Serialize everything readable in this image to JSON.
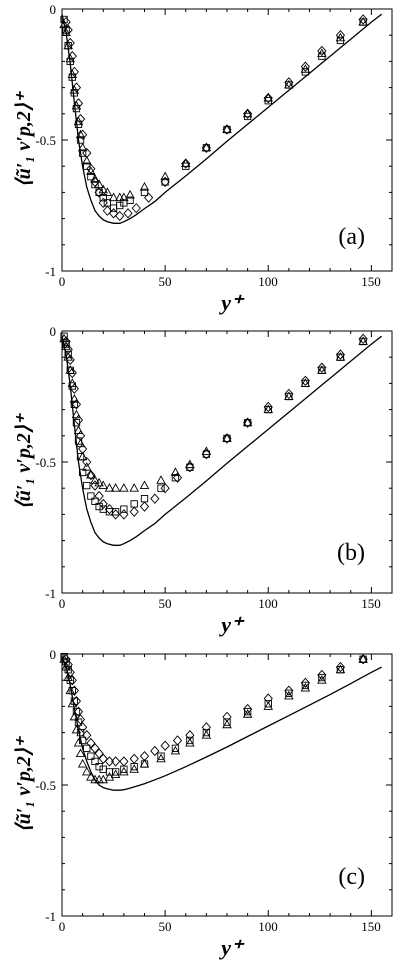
{
  "chart_data": [
    {
      "type": "line",
      "panel_label": "(a)",
      "xlabel": "y⁺",
      "ylabel": "⟨ũ′₁ v′p,2⟩⁺",
      "xlim": [
        0,
        160
      ],
      "ylim": [
        -1,
        0
      ],
      "xticks": [
        "0",
        "50",
        "100",
        "150"
      ],
      "yticks": [
        "0",
        "-0.5",
        "-1"
      ],
      "grid": false,
      "series": [
        {
          "marker": "line",
          "x": [
            0,
            2,
            4,
            6,
            8,
            10,
            12,
            14,
            16,
            18,
            20,
            22,
            25,
            28,
            30,
            33,
            36,
            40,
            45,
            50,
            60,
            70,
            80,
            90,
            100,
            110,
            120,
            130,
            140,
            150,
            155
          ],
          "y": [
            -0.02,
            -0.09,
            -0.21,
            -0.36,
            -0.5,
            -0.6,
            -0.68,
            -0.73,
            -0.77,
            -0.79,
            -0.805,
            -0.812,
            -0.818,
            -0.818,
            -0.812,
            -0.8,
            -0.785,
            -0.762,
            -0.735,
            -0.7,
            -0.637,
            -0.572,
            -0.505,
            -0.44,
            -0.375,
            -0.31,
            -0.245,
            -0.18,
            -0.115,
            -0.05,
            -0.02
          ]
        },
        {
          "marker": "square",
          "x": [
            1,
            2,
            3,
            4,
            5,
            6,
            7,
            8,
            9,
            10,
            12,
            14,
            16,
            18,
            20,
            22,
            25,
            28,
            30,
            33,
            40,
            50,
            60,
            70,
            80,
            90,
            100,
            110,
            118,
            126,
            135,
            146
          ],
          "y": [
            -0.04,
            -0.08,
            -0.14,
            -0.2,
            -0.26,
            -0.32,
            -0.38,
            -0.44,
            -0.5,
            -0.55,
            -0.6,
            -0.64,
            -0.67,
            -0.7,
            -0.72,
            -0.74,
            -0.76,
            -0.75,
            -0.74,
            -0.73,
            -0.7,
            -0.66,
            -0.6,
            -0.53,
            -0.46,
            -0.41,
            -0.35,
            -0.29,
            -0.24,
            -0.18,
            -0.12,
            -0.05
          ]
        },
        {
          "marker": "triangle",
          "x": [
            1,
            2,
            3,
            4,
            5,
            6,
            7,
            8,
            9,
            10,
            12,
            14,
            16,
            18,
            20,
            22,
            25,
            28,
            30,
            33,
            40,
            50,
            60,
            70,
            80,
            90,
            100,
            110,
            118,
            126,
            135,
            146
          ],
          "y": [
            -0.06,
            -0.09,
            -0.14,
            -0.19,
            -0.25,
            -0.31,
            -0.37,
            -0.43,
            -0.48,
            -0.53,
            -0.58,
            -0.62,
            -0.65,
            -0.67,
            -0.69,
            -0.7,
            -0.72,
            -0.72,
            -0.72,
            -0.71,
            -0.68,
            -0.64,
            -0.59,
            -0.53,
            -0.46,
            -0.4,
            -0.34,
            -0.29,
            -0.23,
            -0.17,
            -0.11,
            -0.05
          ]
        },
        {
          "marker": "diamond",
          "x": [
            2,
            3,
            4,
            5,
            6,
            7,
            8,
            9,
            10,
            12,
            14,
            16,
            18,
            20,
            22,
            25,
            28,
            32,
            36,
            42,
            50,
            60,
            70,
            80,
            90,
            100,
            110,
            118,
            126,
            135,
            146
          ],
          "y": [
            -0.05,
            -0.08,
            -0.13,
            -0.18,
            -0.24,
            -0.3,
            -0.36,
            -0.42,
            -0.48,
            -0.55,
            -0.61,
            -0.66,
            -0.7,
            -0.74,
            -0.77,
            -0.78,
            -0.79,
            -0.78,
            -0.76,
            -0.72,
            -0.66,
            -0.59,
            -0.53,
            -0.46,
            -0.4,
            -0.34,
            -0.28,
            -0.22,
            -0.16,
            -0.1,
            -0.04
          ]
        }
      ]
    },
    {
      "type": "line",
      "panel_label": "(b)",
      "xlabel": "y⁺",
      "ylabel": "⟨ũ′₁ v′p,2⟩⁺",
      "xlim": [
        0,
        160
      ],
      "ylim": [
        -1,
        0
      ],
      "xticks": [
        "0",
        "50",
        "100",
        "150"
      ],
      "yticks": [
        "0",
        "-0.5",
        "-1"
      ],
      "grid": false,
      "series": [
        {
          "marker": "line",
          "x": [
            0,
            2,
            4,
            6,
            8,
            10,
            12,
            14,
            16,
            18,
            20,
            22,
            25,
            28,
            30,
            33,
            36,
            40,
            45,
            50,
            60,
            70,
            80,
            90,
            100,
            110,
            120,
            130,
            140,
            150,
            155
          ],
          "y": [
            -0.02,
            -0.09,
            -0.21,
            -0.36,
            -0.5,
            -0.6,
            -0.68,
            -0.73,
            -0.77,
            -0.79,
            -0.805,
            -0.812,
            -0.818,
            -0.818,
            -0.812,
            -0.8,
            -0.785,
            -0.762,
            -0.735,
            -0.7,
            -0.637,
            -0.572,
            -0.505,
            -0.44,
            -0.375,
            -0.31,
            -0.245,
            -0.18,
            -0.115,
            -0.05,
            -0.02
          ]
        },
        {
          "marker": "square",
          "x": [
            1,
            2,
            3,
            4,
            5,
            6,
            7,
            8,
            9,
            10,
            12,
            14,
            16,
            18,
            20,
            23,
            26,
            30,
            35,
            40,
            48,
            55,
            62,
            70,
            80,
            90,
            100,
            110,
            118,
            126,
            135,
            146
          ],
          "y": [
            -0.02,
            -0.05,
            -0.09,
            -0.15,
            -0.21,
            -0.28,
            -0.35,
            -0.42,
            -0.48,
            -0.54,
            -0.59,
            -0.63,
            -0.65,
            -0.67,
            -0.68,
            -0.69,
            -0.69,
            -0.68,
            -0.66,
            -0.64,
            -0.6,
            -0.56,
            -0.52,
            -0.47,
            -0.41,
            -0.35,
            -0.3,
            -0.25,
            -0.2,
            -0.15,
            -0.1,
            -0.04
          ]
        },
        {
          "marker": "triangle",
          "x": [
            1,
            2,
            3,
            4,
            5,
            6,
            7,
            8,
            9,
            10,
            12,
            14,
            16,
            18,
            20,
            23,
            26,
            30,
            35,
            40,
            48,
            55,
            62,
            70,
            80,
            90,
            100,
            110,
            118,
            126,
            135,
            146
          ],
          "y": [
            -0.03,
            -0.06,
            -0.1,
            -0.15,
            -0.2,
            -0.26,
            -0.32,
            -0.38,
            -0.43,
            -0.48,
            -0.52,
            -0.55,
            -0.57,
            -0.58,
            -0.59,
            -0.6,
            -0.6,
            -0.6,
            -0.6,
            -0.59,
            -0.57,
            -0.54,
            -0.51,
            -0.46,
            -0.41,
            -0.35,
            -0.3,
            -0.25,
            -0.2,
            -0.15,
            -0.1,
            -0.04
          ]
        },
        {
          "marker": "diamond",
          "x": [
            2,
            3,
            4,
            5,
            6,
            7,
            8,
            9,
            10,
            12,
            14,
            16,
            18,
            20,
            23,
            26,
            30,
            35,
            40,
            45,
            50,
            56,
            62,
            70,
            80,
            90,
            100,
            110,
            118,
            126,
            135,
            146
          ],
          "y": [
            -0.04,
            -0.07,
            -0.11,
            -0.16,
            -0.22,
            -0.28,
            -0.34,
            -0.4,
            -0.45,
            -0.5,
            -0.55,
            -0.59,
            -0.63,
            -0.66,
            -0.68,
            -0.7,
            -0.7,
            -0.69,
            -0.67,
            -0.64,
            -0.6,
            -0.56,
            -0.52,
            -0.47,
            -0.41,
            -0.35,
            -0.29,
            -0.24,
            -0.19,
            -0.14,
            -0.09,
            -0.03
          ]
        }
      ]
    },
    {
      "type": "line",
      "panel_label": "(c)",
      "xlabel": "y⁺",
      "ylabel": "⟨ũ′₁ v′p,2⟩⁺",
      "xlim": [
        0,
        160
      ],
      "ylim": [
        -1,
        0
      ],
      "xticks": [
        "0",
        "50",
        "100",
        "150"
      ],
      "yticks": [
        "0",
        "-0.5",
        "-1"
      ],
      "grid": false,
      "series": [
        {
          "marker": "line",
          "x": [
            0,
            2,
            4,
            6,
            8,
            10,
            12,
            14,
            16,
            18,
            20,
            22,
            25,
            28,
            30,
            33,
            36,
            40,
            45,
            50,
            60,
            70,
            80,
            90,
            100,
            110,
            120,
            130,
            140,
            150,
            155
          ],
          "y": [
            -0.01,
            -0.05,
            -0.12,
            -0.21,
            -0.29,
            -0.36,
            -0.41,
            -0.45,
            -0.48,
            -0.5,
            -0.51,
            -0.515,
            -0.52,
            -0.52,
            -0.518,
            -0.512,
            -0.505,
            -0.495,
            -0.48,
            -0.465,
            -0.43,
            -0.393,
            -0.355,
            -0.315,
            -0.275,
            -0.235,
            -0.195,
            -0.155,
            -0.113,
            -0.07,
            -0.05
          ]
        },
        {
          "marker": "square",
          "x": [
            1,
            2,
            3,
            4,
            5,
            6,
            7,
            8,
            9,
            10,
            12,
            14,
            16,
            18,
            20,
            23,
            26,
            30,
            35,
            40,
            48,
            55,
            62,
            70,
            80,
            90,
            100,
            110,
            118,
            126,
            135,
            146
          ],
          "y": [
            -0.01,
            -0.03,
            -0.06,
            -0.1,
            -0.14,
            -0.18,
            -0.22,
            -0.26,
            -0.3,
            -0.33,
            -0.36,
            -0.39,
            -0.41,
            -0.43,
            -0.44,
            -0.45,
            -0.45,
            -0.44,
            -0.43,
            -0.42,
            -0.39,
            -0.36,
            -0.33,
            -0.3,
            -0.26,
            -0.22,
            -0.19,
            -0.15,
            -0.12,
            -0.09,
            -0.06,
            -0.02
          ]
        },
        {
          "marker": "triangle",
          "x": [
            1,
            2,
            3,
            4,
            5,
            6,
            7,
            8,
            9,
            10,
            12,
            14,
            16,
            18,
            20,
            23,
            26,
            30,
            35,
            40,
            48,
            55,
            62,
            70,
            80,
            90,
            100,
            110,
            118,
            126,
            135,
            146
          ],
          "y": [
            -0.02,
            -0.05,
            -0.09,
            -0.14,
            -0.19,
            -0.24,
            -0.29,
            -0.34,
            -0.38,
            -0.42,
            -0.45,
            -0.47,
            -0.48,
            -0.48,
            -0.48,
            -0.47,
            -0.46,
            -0.45,
            -0.44,
            -0.42,
            -0.4,
            -0.37,
            -0.34,
            -0.31,
            -0.27,
            -0.23,
            -0.2,
            -0.16,
            -0.13,
            -0.1,
            -0.06,
            -0.02
          ]
        },
        {
          "marker": "diamond",
          "x": [
            2,
            3,
            4,
            5,
            6,
            7,
            8,
            9,
            10,
            12,
            14,
            16,
            18,
            20,
            23,
            26,
            30,
            35,
            40,
            45,
            50,
            56,
            62,
            70,
            80,
            90,
            100,
            110,
            118,
            126,
            135,
            146
          ],
          "y": [
            -0.02,
            -0.04,
            -0.07,
            -0.1,
            -0.14,
            -0.18,
            -0.22,
            -0.25,
            -0.28,
            -0.31,
            -0.34,
            -0.36,
            -0.38,
            -0.4,
            -0.41,
            -0.41,
            -0.41,
            -0.4,
            -0.39,
            -0.37,
            -0.35,
            -0.33,
            -0.31,
            -0.28,
            -0.24,
            -0.21,
            -0.17,
            -0.14,
            -0.11,
            -0.08,
            -0.05,
            -0.02
          ]
        }
      ]
    }
  ]
}
